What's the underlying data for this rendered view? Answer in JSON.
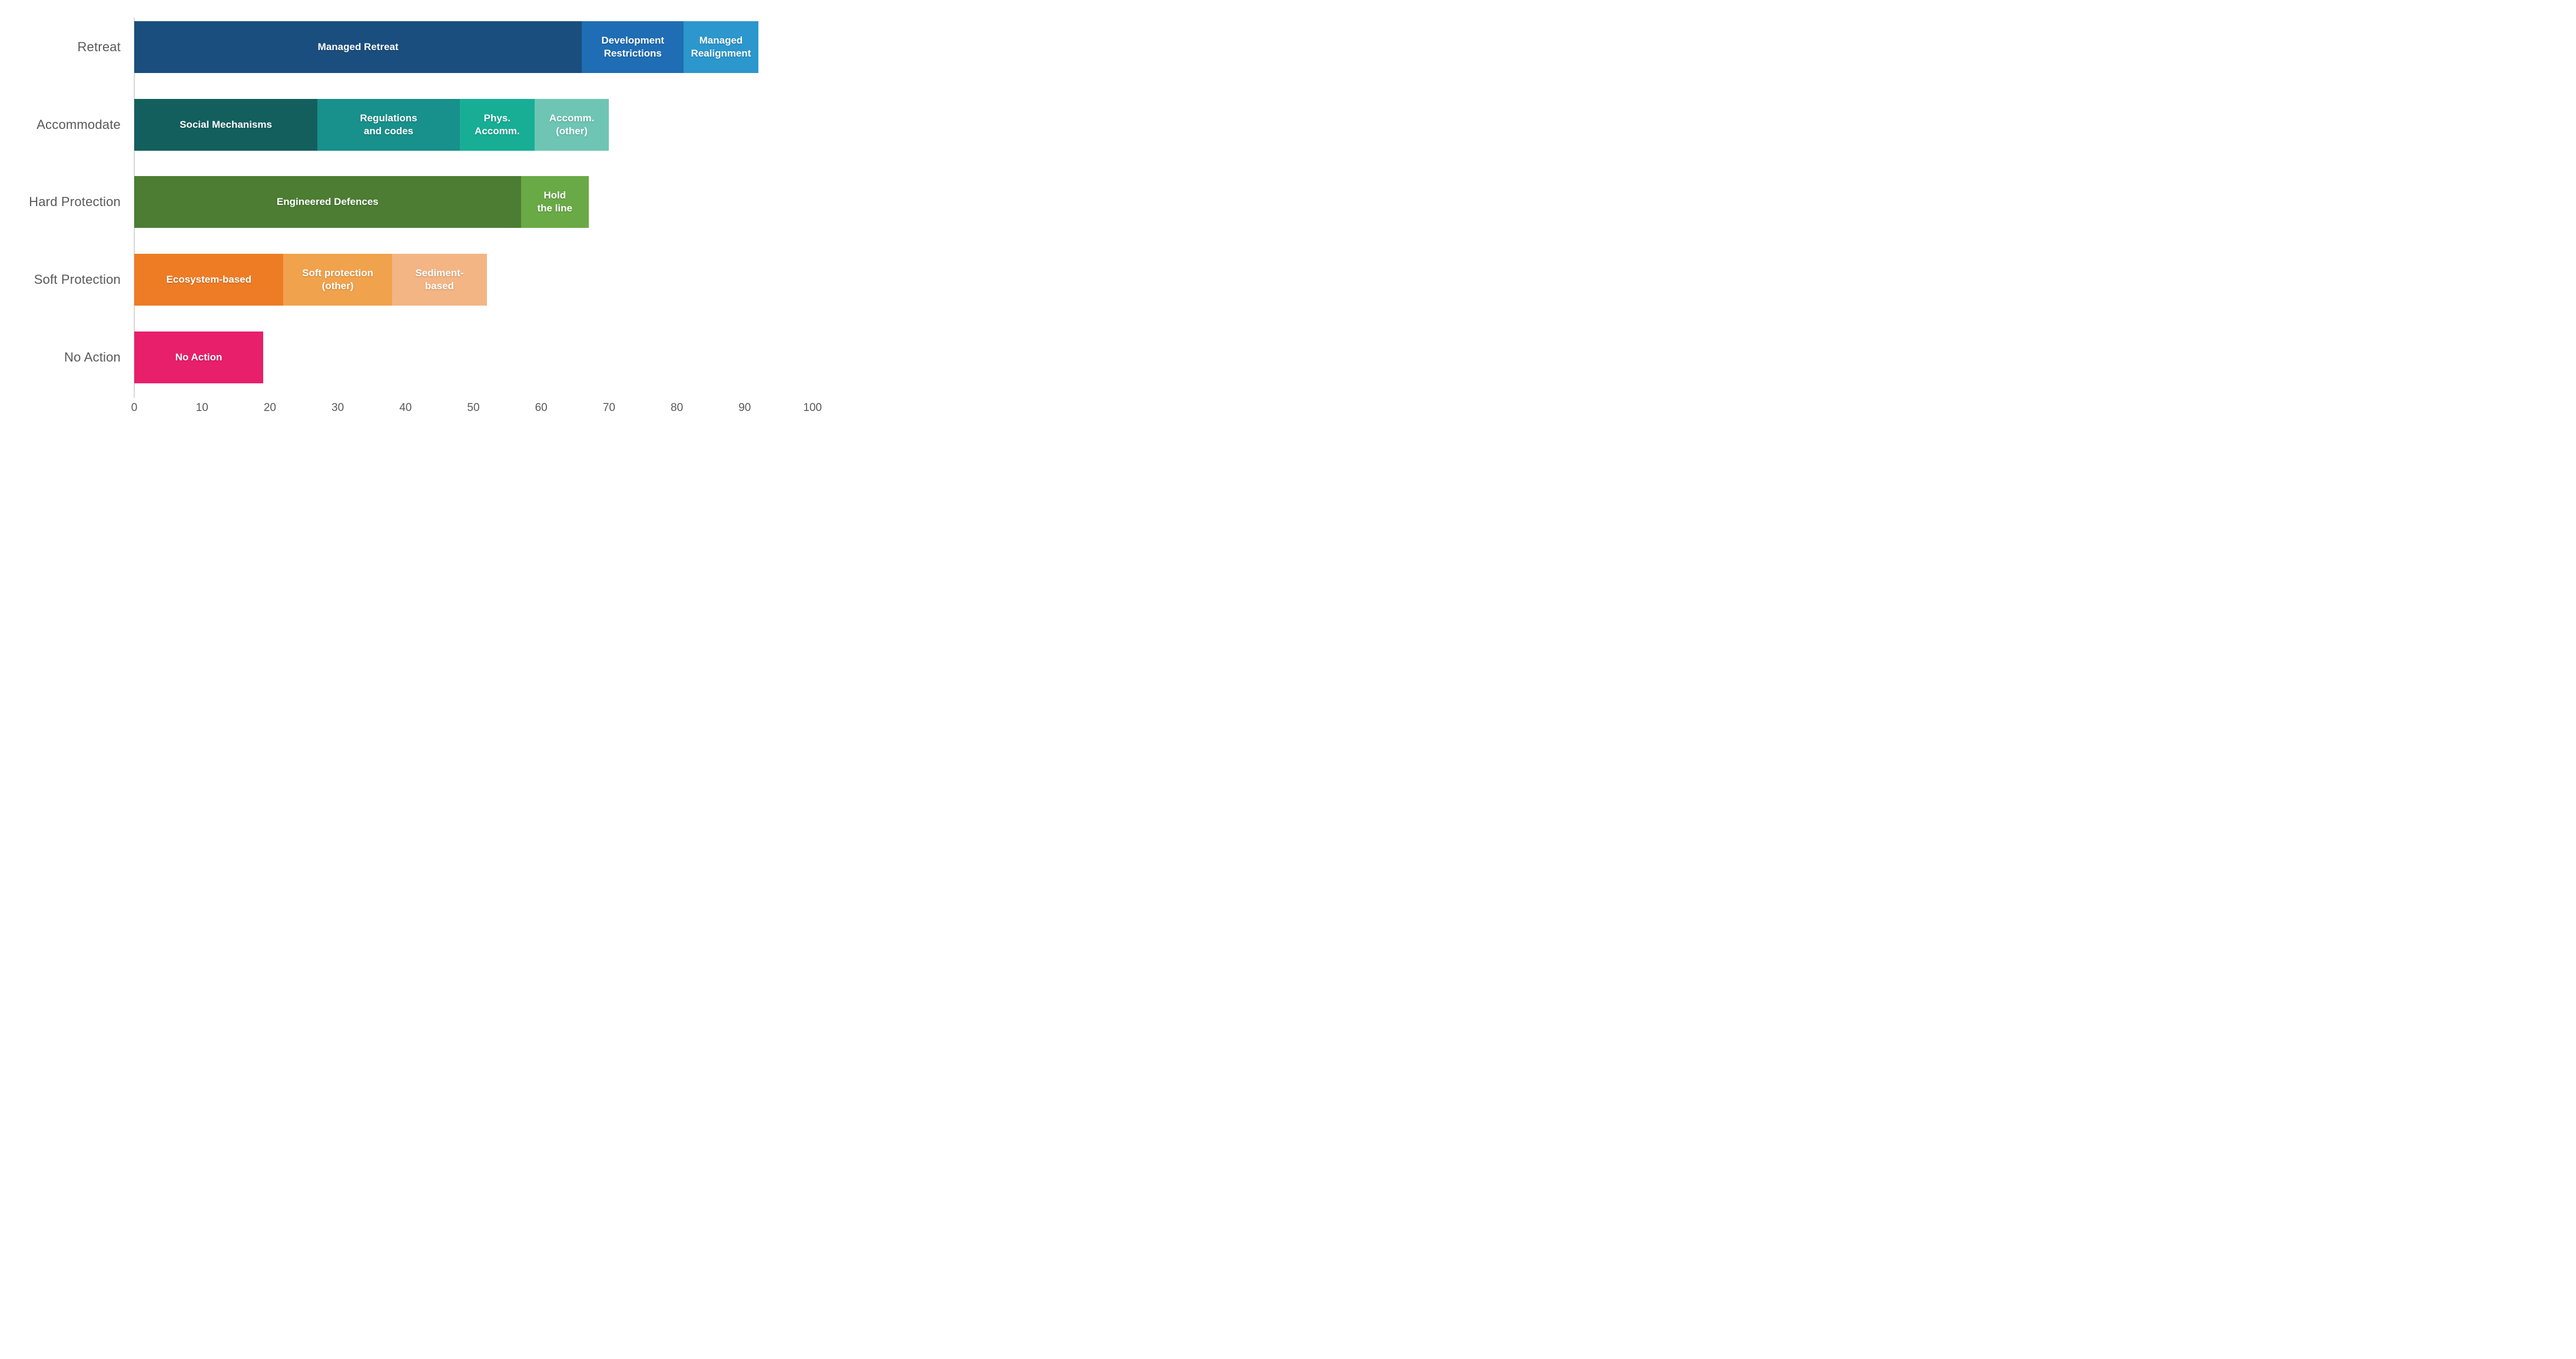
{
  "figure": {
    "background": "#ffffff",
    "axis_line_color": "#d9d9d9",
    "text_color": "#595959"
  },
  "chart_data": {
    "type": "bar",
    "orientation": "horizontal",
    "stacked": true,
    "title": "",
    "xlabel": "",
    "ylabel": "",
    "xlim": [
      0,
      100
    ],
    "tick_step": 10,
    "tick_labels": [
      "0",
      "10",
      "20",
      "30",
      "40",
      "50",
      "60",
      "70",
      "80",
      "90",
      "100"
    ],
    "grid": false,
    "legend": "none (labels inside segments)",
    "categories": [
      "Retreat",
      "Accommodate",
      "Hard Protection",
      "Soft Protection",
      "No Action"
    ],
    "rows": [
      {
        "category": "Retreat",
        "total": 92,
        "segments": [
          {
            "label": "Managed Retreat",
            "value": 66,
            "color": "#1a4e7e"
          },
          {
            "label": "Development\nRestrictions",
            "value": 15,
            "color": "#1f6db4"
          },
          {
            "label": "Managed\nRealignment",
            "value": 11,
            "color": "#2b97cd"
          }
        ]
      },
      {
        "category": "Accommodate",
        "total": 70,
        "segments": [
          {
            "label": "Social Mechanisms",
            "value": 27,
            "color": "#135f5e"
          },
          {
            "label": "Regulations\nand codes",
            "value": 21,
            "color": "#18908c"
          },
          {
            "label": "Phys.\nAccomm.",
            "value": 11,
            "color": "#17ae95"
          },
          {
            "label": "Accomm.\n(other)",
            "value": 11,
            "color": "#6ec5b4"
          }
        ]
      },
      {
        "category": "Hard Protection",
        "total": 67,
        "segments": [
          {
            "label": "Engineered Defences",
            "value": 57,
            "color": "#4c7d33"
          },
          {
            "label": "Hold\nthe line",
            "value": 10,
            "color": "#69aa47"
          }
        ]
      },
      {
        "category": "Soft Protection",
        "total": 52,
        "segments": [
          {
            "label": "Ecosystem-based",
            "value": 22,
            "color": "#ed7c25"
          },
          {
            "label": "Soft protection\n(other)",
            "value": 16,
            "color": "#f1a24c"
          },
          {
            "label": "Sediment-\nbased",
            "value": 14,
            "color": "#f4b584"
          }
        ]
      },
      {
        "category": "No Action",
        "total": 19,
        "segments": [
          {
            "label": "No Action",
            "value": 19,
            "color": "#e81f6b"
          }
        ]
      }
    ]
  }
}
